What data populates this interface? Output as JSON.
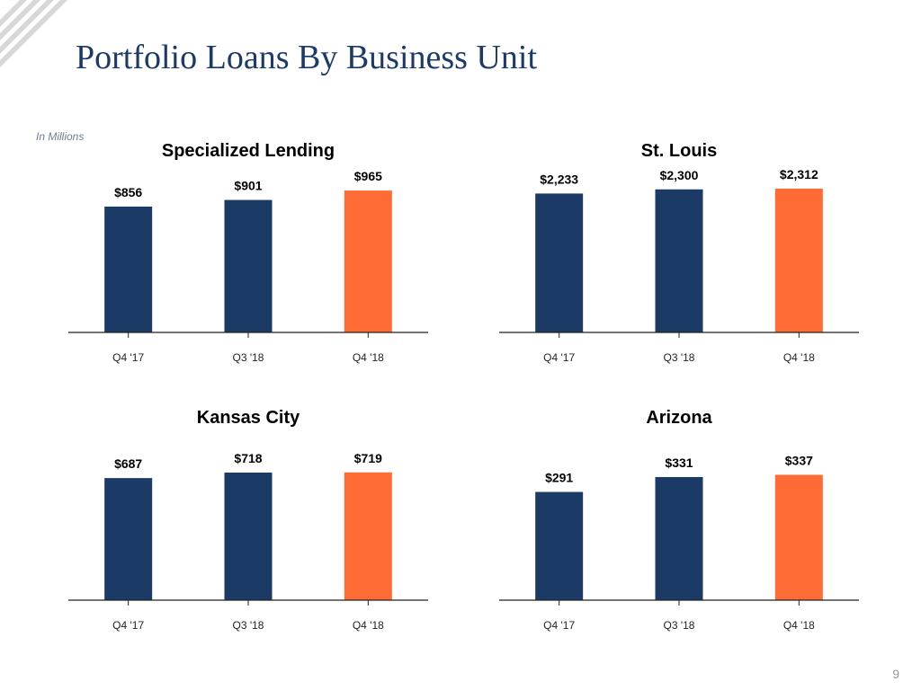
{
  "slide": {
    "title": "Portfolio Loans By Business Unit",
    "units_note": "In Millions",
    "page_number": "9"
  },
  "colors": {
    "title": "#1b3a6a",
    "bar_navy": "#1b3a66",
    "bar_orange": "#ff6b35",
    "axis": "#222222",
    "logo_stripe": "#d8d8d8"
  },
  "chart_data": [
    {
      "type": "bar",
      "title": "Specialized Lending",
      "categories": [
        "Q4 '17",
        "Q3 '18",
        "Q4 '18"
      ],
      "values": [
        856,
        901,
        965
      ],
      "labels": [
        "$856",
        "$901",
        "$965"
      ],
      "highlight_index": 2,
      "ylim": [
        0,
        1100
      ]
    },
    {
      "type": "bar",
      "title": "St. Louis",
      "categories": [
        "Q4 '17",
        "Q3 '18",
        "Q4 '18"
      ],
      "values": [
        2233,
        2300,
        2312
      ],
      "labels": [
        "$2,233",
        "$2,300",
        "$2,312"
      ],
      "highlight_index": 2,
      "ylim": [
        0,
        2600
      ]
    },
    {
      "type": "bar",
      "title": "Kansas City",
      "categories": [
        "Q4 '17",
        "Q3 '18",
        "Q4 '18"
      ],
      "values": [
        687,
        718,
        719
      ],
      "labels": [
        "$687",
        "$718",
        "$719"
      ],
      "highlight_index": 2,
      "ylim": [
        0,
        900
      ]
    },
    {
      "type": "bar",
      "title": "Arizona",
      "categories": [
        "Q4 '17",
        "Q3 '18",
        "Q4 '18"
      ],
      "values": [
        291,
        331,
        337
      ],
      "labels": [
        "$291",
        "$331",
        "$337"
      ],
      "highlight_index": 2,
      "ylim": [
        0,
        430
      ]
    }
  ]
}
